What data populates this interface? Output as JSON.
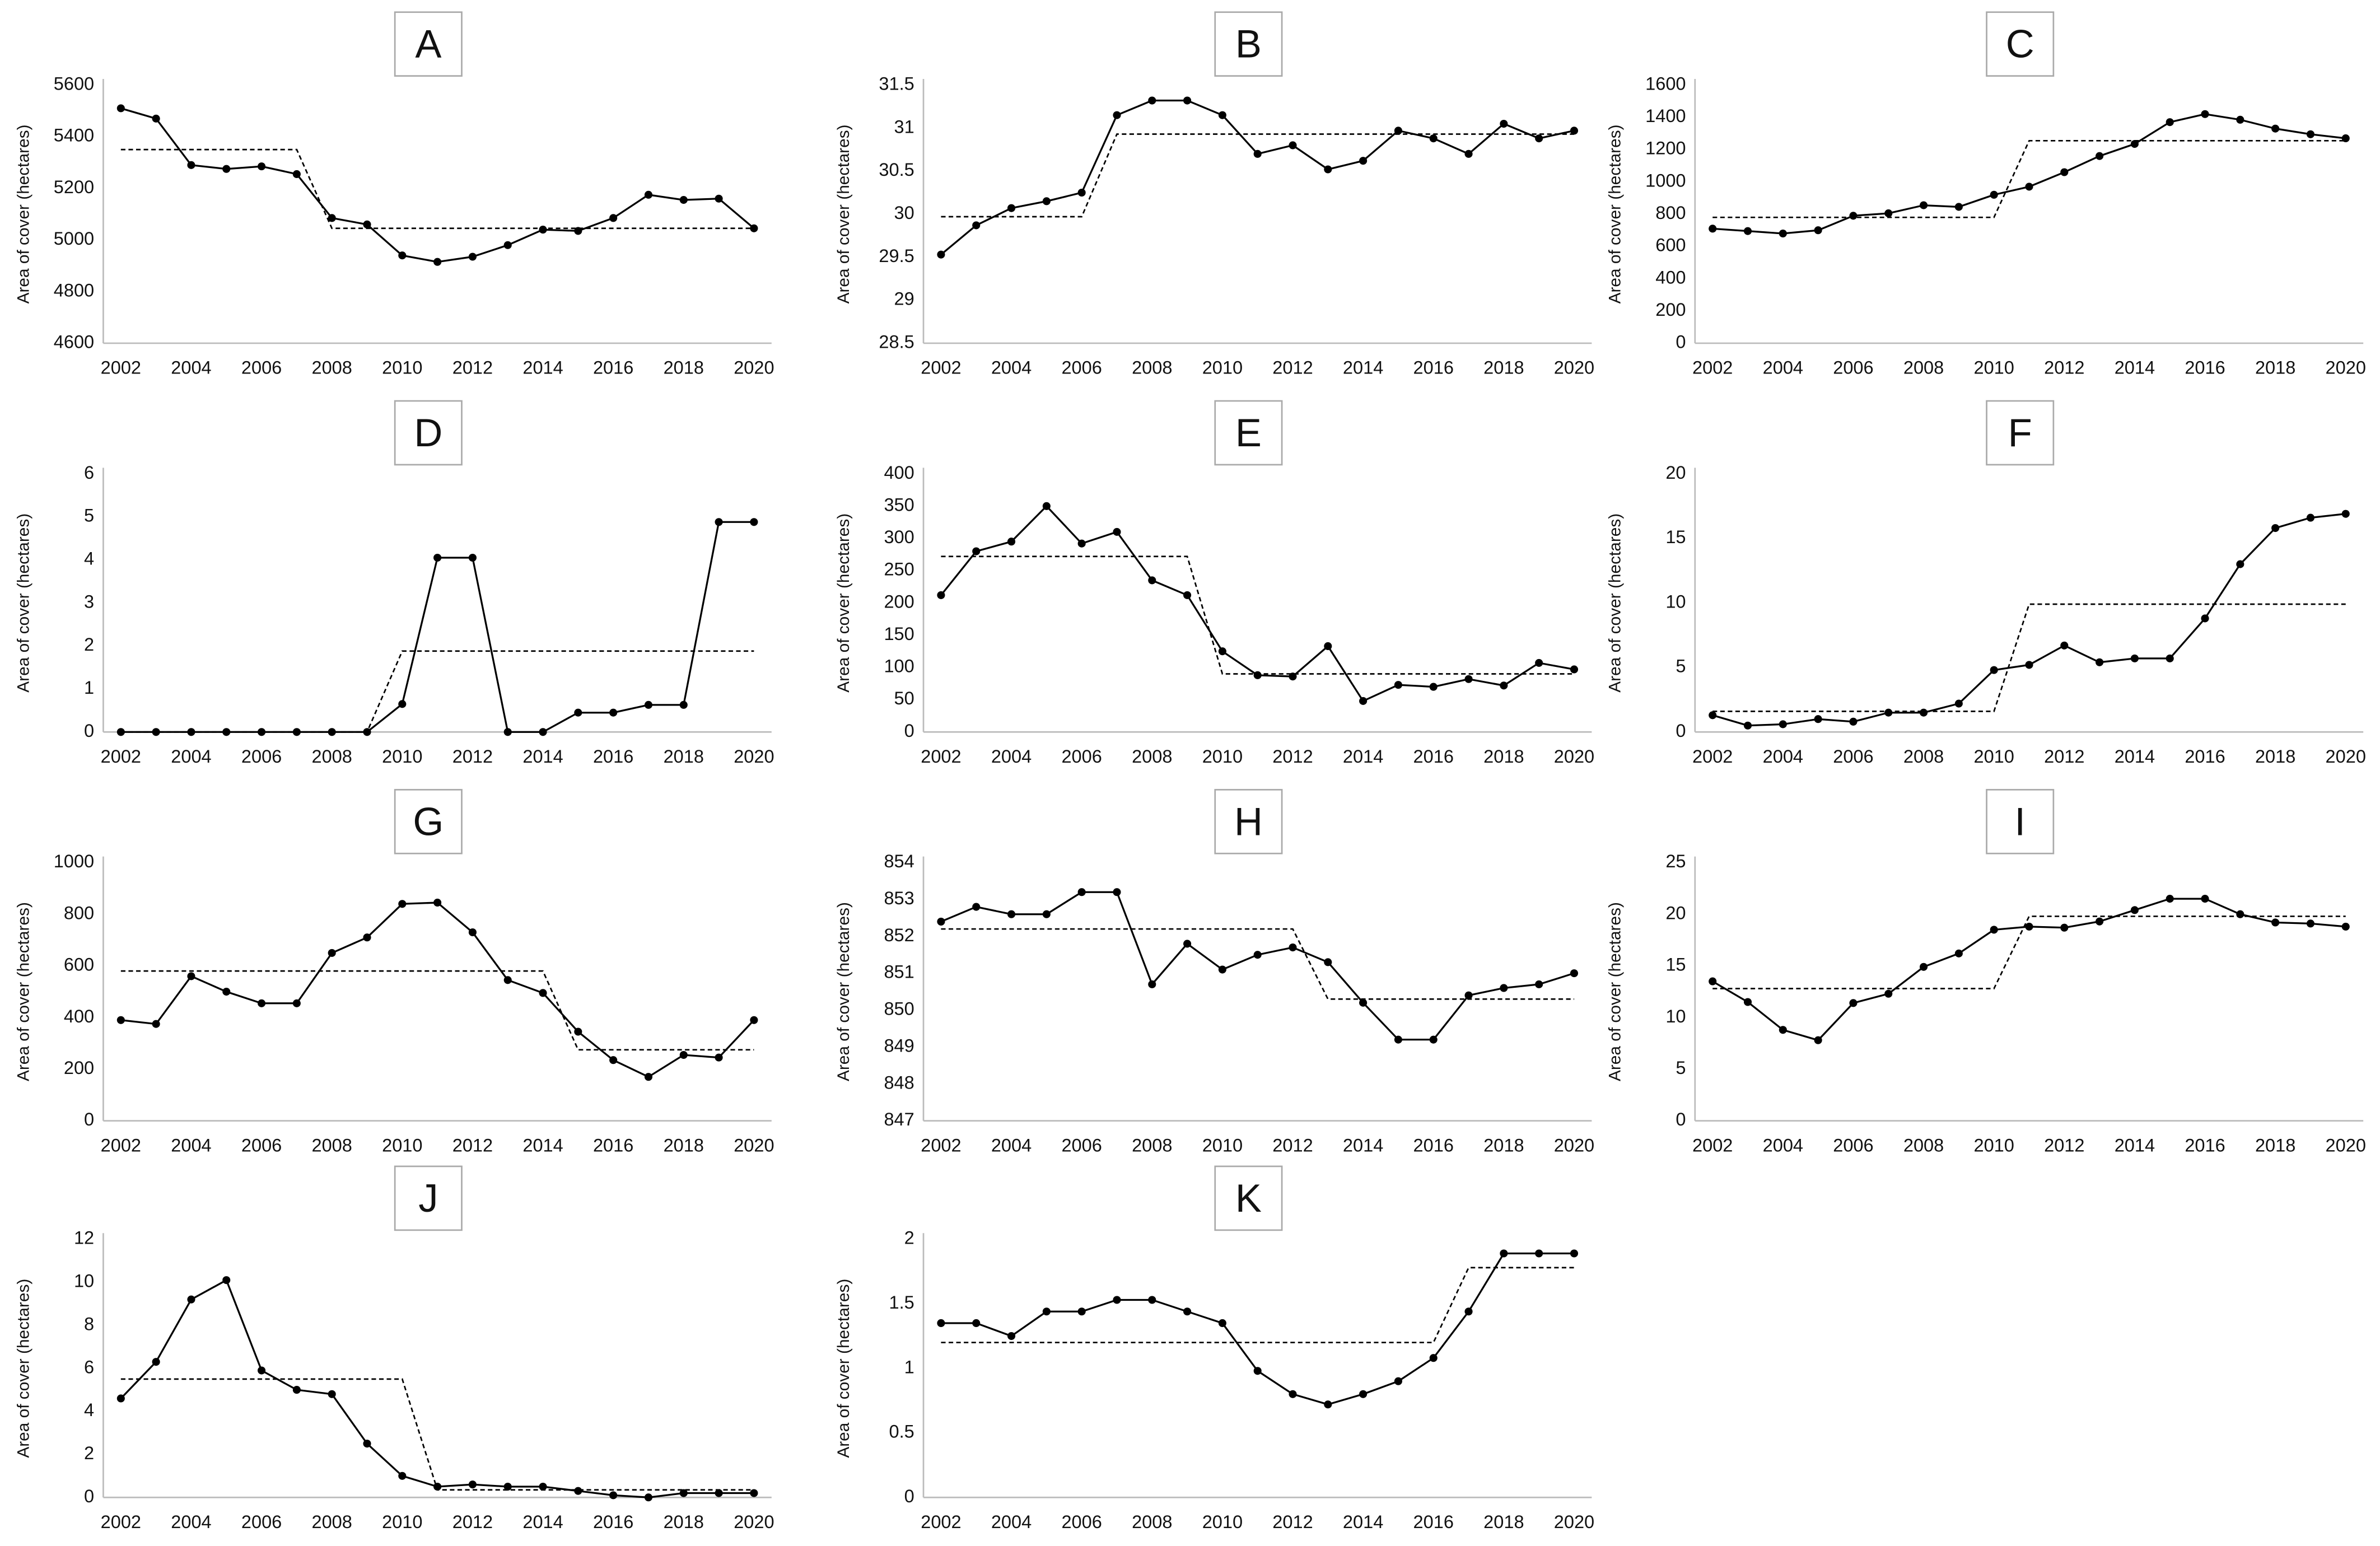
{
  "chart_data": [
    {
      "type": "line",
      "title": "A",
      "ylabel": "Area of cover (hectares)",
      "x": [
        2002,
        2003,
        2004,
        2005,
        2006,
        2007,
        2008,
        2009,
        2010,
        2011,
        2012,
        2013,
        2014,
        2015,
        2016,
        2017,
        2018,
        2019,
        2020
      ],
      "xlim": [
        2001.5,
        2020.5
      ],
      "xticks": [
        2002,
        2004,
        2006,
        2008,
        2010,
        2012,
        2014,
        2016,
        2018,
        2020
      ],
      "ylim": [
        4600,
        5600
      ],
      "yticks": [
        4600,
        4800,
        5000,
        5200,
        5400,
        5600
      ],
      "series": [
        {
          "color": "#000000",
          "style": "solid",
          "markers": true,
          "values": [
            5510,
            5470,
            5290,
            5275,
            5285,
            5255,
            5085,
            5060,
            4940,
            4915,
            4935,
            4980,
            5040,
            5035,
            5085,
            5175,
            5155,
            5160,
            5045
          ]
        },
        {
          "color": "#000000",
          "style": "dashed",
          "markers": false,
          "values": [
            5350,
            5350,
            5350,
            5350,
            5350,
            5350,
            5045,
            5045,
            5045,
            5045,
            5045,
            5045,
            5045,
            5045,
            5045,
            5045,
            5045,
            5045,
            5045
          ]
        }
      ]
    },
    {
      "type": "line",
      "title": "B",
      "ylabel": "Area of cover (hectares)",
      "x": [
        2002,
        2003,
        2004,
        2005,
        2006,
        2007,
        2008,
        2009,
        2010,
        2011,
        2012,
        2013,
        2014,
        2015,
        2016,
        2017,
        2018,
        2019,
        2020
      ],
      "xlim": [
        2001.5,
        2020.5
      ],
      "xticks": [
        2002,
        2004,
        2006,
        2008,
        2010,
        2012,
        2014,
        2016,
        2018,
        2020
      ],
      "ylim": [
        28.5,
        31.5
      ],
      "yticks": [
        28.5,
        29,
        29.5,
        30,
        30.5,
        31,
        31.5
      ],
      "series": [
        {
          "color": "#000000",
          "style": "solid",
          "markers": true,
          "values": [
            29.53,
            29.87,
            30.07,
            30.15,
            30.25,
            31.15,
            31.32,
            31.32,
            31.15,
            30.7,
            30.8,
            30.52,
            30.62,
            30.97,
            30.88,
            30.7,
            31.05,
            30.88,
            30.97
          ]
        },
        {
          "color": "#000000",
          "style": "dashed",
          "markers": false,
          "values": [
            29.97,
            29.97,
            29.97,
            29.97,
            29.97,
            30.93,
            30.93,
            30.93,
            30.93,
            30.93,
            30.93,
            30.93,
            30.93,
            30.93,
            30.93,
            30.93,
            30.93,
            30.93,
            30.93
          ]
        }
      ]
    },
    {
      "type": "line",
      "title": "C",
      "ylabel": "Area of cover (hectares)",
      "x": [
        2002,
        2003,
        2004,
        2005,
        2006,
        2007,
        2008,
        2009,
        2010,
        2011,
        2012,
        2013,
        2014,
        2015,
        2016,
        2017,
        2018,
        2019,
        2020
      ],
      "xlim": [
        2001.5,
        2020.5
      ],
      "xticks": [
        2002,
        2004,
        2006,
        2008,
        2010,
        2012,
        2014,
        2016,
        2018,
        2020
      ],
      "ylim": [
        0,
        1600
      ],
      "yticks": [
        0,
        200,
        400,
        600,
        800,
        1000,
        1200,
        1400,
        1600
      ],
      "series": [
        {
          "color": "#000000",
          "style": "solid",
          "markers": true,
          "values": [
            710,
            695,
            680,
            700,
            790,
            805,
            855,
            845,
            920,
            970,
            1060,
            1160,
            1235,
            1370,
            1420,
            1385,
            1330,
            1295,
            1270
          ]
        },
        {
          "color": "#000000",
          "style": "dashed",
          "markers": false,
          "values": [
            780,
            780,
            780,
            780,
            780,
            780,
            780,
            780,
            780,
            1255,
            1255,
            1255,
            1255,
            1255,
            1255,
            1255,
            1255,
            1255,
            1255
          ]
        }
      ]
    },
    {
      "type": "line",
      "title": "D",
      "ylabel": "Area of cover (hectares)",
      "x": [
        2002,
        2003,
        2004,
        2005,
        2006,
        2007,
        2008,
        2009,
        2010,
        2011,
        2012,
        2013,
        2014,
        2015,
        2016,
        2017,
        2018,
        2019,
        2020
      ],
      "xlim": [
        2001.5,
        2020.5
      ],
      "xticks": [
        2002,
        2004,
        2006,
        2008,
        2010,
        2012,
        2014,
        2016,
        2018,
        2020
      ],
      "ylim": [
        0,
        6
      ],
      "yticks": [
        0,
        1,
        2,
        3,
        4,
        5,
        6
      ],
      "series": [
        {
          "color": "#000000",
          "style": "solid",
          "markers": true,
          "values": [
            0,
            0,
            0,
            0,
            0,
            0,
            0,
            0,
            0.65,
            4.05,
            4.05,
            0,
            0,
            0.45,
            0.45,
            0.63,
            0.63,
            4.88,
            4.88
          ]
        },
        {
          "color": "#000000",
          "style": "dashed",
          "markers": false,
          "values": [
            0,
            0,
            0,
            0,
            0,
            0,
            0,
            0,
            1.88,
            1.88,
            1.88,
            1.88,
            1.88,
            1.88,
            1.88,
            1.88,
            1.88,
            1.88,
            1.88
          ]
        }
      ]
    },
    {
      "type": "line",
      "title": "E",
      "ylabel": "Area of cover (hectares)",
      "x": [
        2002,
        2003,
        2004,
        2005,
        2006,
        2007,
        2008,
        2009,
        2010,
        2011,
        2012,
        2013,
        2014,
        2015,
        2016,
        2017,
        2018,
        2019,
        2020
      ],
      "xlim": [
        2001.5,
        2020.5
      ],
      "xticks": [
        2002,
        2004,
        2006,
        2008,
        2010,
        2012,
        2014,
        2016,
        2018,
        2020
      ],
      "ylim": [
        0,
        400
      ],
      "yticks": [
        0,
        50,
        100,
        150,
        200,
        250,
        300,
        350,
        400
      ],
      "series": [
        {
          "color": "#000000",
          "style": "solid",
          "markers": true,
          "values": [
            212,
            280,
            295,
            350,
            292,
            310,
            235,
            212,
            125,
            88,
            86,
            133,
            48,
            73,
            70,
            82,
            72,
            107,
            97
          ]
        },
        {
          "color": "#000000",
          "style": "dashed",
          "markers": false,
          "values": [
            272,
            272,
            272,
            272,
            272,
            272,
            272,
            272,
            90,
            90,
            90,
            90,
            90,
            90,
            90,
            90,
            90,
            90,
            90
          ]
        }
      ]
    },
    {
      "type": "line",
      "title": "F",
      "ylabel": "Area of cover (hectares)",
      "x": [
        2002,
        2003,
        2004,
        2005,
        2006,
        2007,
        2008,
        2009,
        2010,
        2011,
        2012,
        2013,
        2014,
        2015,
        2016,
        2017,
        2018,
        2019,
        2020
      ],
      "xlim": [
        2001.5,
        2020.5
      ],
      "xticks": [
        2002,
        2004,
        2006,
        2008,
        2010,
        2012,
        2014,
        2016,
        2018,
        2020
      ],
      "ylim": [
        0,
        20
      ],
      "yticks": [
        0,
        5,
        10,
        15,
        20
      ],
      "series": [
        {
          "color": "#000000",
          "style": "solid",
          "markers": true,
          "values": [
            1.3,
            0.5,
            0.6,
            1.0,
            0.8,
            1.5,
            1.5,
            2.2,
            4.8,
            5.2,
            6.7,
            5.4,
            5.7,
            5.7,
            8.8,
            13,
            15.8,
            16.6,
            16.9
          ]
        },
        {
          "color": "#000000",
          "style": "dashed",
          "markers": false,
          "values": [
            1.6,
            1.6,
            1.6,
            1.6,
            1.6,
            1.6,
            1.6,
            1.6,
            1.6,
            9.9,
            9.9,
            9.9,
            9.9,
            9.9,
            9.9,
            9.9,
            9.9,
            9.9,
            9.9
          ]
        }
      ]
    },
    {
      "type": "line",
      "title": "G",
      "ylabel": "Area of cover (hectares)",
      "x": [
        2002,
        2003,
        2004,
        2005,
        2006,
        2007,
        2008,
        2009,
        2010,
        2011,
        2012,
        2013,
        2014,
        2015,
        2016,
        2017,
        2018,
        2019,
        2020
      ],
      "xlim": [
        2001.5,
        2020.5
      ],
      "xticks": [
        2002,
        2004,
        2006,
        2008,
        2010,
        2012,
        2014,
        2016,
        2018,
        2020
      ],
      "ylim": [
        0,
        1000
      ],
      "yticks": [
        0,
        200,
        400,
        600,
        800,
        1000
      ],
      "series": [
        {
          "color": "#000000",
          "style": "solid",
          "markers": true,
          "values": [
            390,
            375,
            560,
            500,
            455,
            455,
            650,
            710,
            840,
            845,
            730,
            545,
            495,
            345,
            235,
            170,
            255,
            245,
            390
          ]
        },
        {
          "color": "#000000",
          "style": "dashed",
          "markers": false,
          "values": [
            580,
            580,
            580,
            580,
            580,
            580,
            580,
            580,
            580,
            580,
            580,
            580,
            580,
            275,
            275,
            275,
            275,
            275,
            275
          ]
        }
      ]
    },
    {
      "type": "line",
      "title": "H",
      "ylabel": "Area of cover (hectares)",
      "x": [
        2002,
        2003,
        2004,
        2005,
        2006,
        2007,
        2008,
        2009,
        2010,
        2011,
        2012,
        2013,
        2014,
        2015,
        2016,
        2017,
        2018,
        2019,
        2020
      ],
      "xlim": [
        2001.5,
        2020.5
      ],
      "xticks": [
        2002,
        2004,
        2006,
        2008,
        2010,
        2012,
        2014,
        2016,
        2018,
        2020
      ],
      "ylim": [
        847,
        854
      ],
      "yticks": [
        847,
        848,
        849,
        850,
        851,
        852,
        853,
        854
      ],
      "series": [
        {
          "color": "#000000",
          "style": "solid",
          "markers": true,
          "values": [
            852.4,
            852.8,
            852.6,
            852.6,
            853.2,
            853.2,
            850.7,
            851.8,
            851.1,
            851.5,
            851.7,
            851.3,
            850.2,
            849.2,
            849.2,
            850.4,
            850.6,
            850.7,
            851.0
          ]
        },
        {
          "color": "#000000",
          "style": "dashed",
          "markers": false,
          "values": [
            852.2,
            852.2,
            852.2,
            852.2,
            852.2,
            852.2,
            852.2,
            852.2,
            852.2,
            852.2,
            852.2,
            850.3,
            850.3,
            850.3,
            850.3,
            850.3,
            850.3,
            850.3,
            850.3
          ]
        }
      ]
    },
    {
      "type": "line",
      "title": "I",
      "ylabel": "Area of cover (hectares)",
      "x": [
        2002,
        2003,
        2004,
        2005,
        2006,
        2007,
        2008,
        2009,
        2010,
        2011,
        2012,
        2013,
        2014,
        2015,
        2016,
        2017,
        2018,
        2019,
        2020
      ],
      "xlim": [
        2001.5,
        2020.5
      ],
      "xticks": [
        2002,
        2004,
        2006,
        2008,
        2010,
        2012,
        2014,
        2016,
        2018,
        2020
      ],
      "ylim": [
        0,
        25
      ],
      "yticks": [
        0,
        5,
        10,
        15,
        20,
        25
      ],
      "series": [
        {
          "color": "#000000",
          "style": "solid",
          "markers": true,
          "values": [
            13.5,
            11.5,
            8.8,
            7.8,
            11.4,
            12.3,
            14.9,
            16.2,
            18.5,
            18.8,
            18.7,
            19.3,
            20.4,
            21.5,
            21.5,
            20,
            19.2,
            19.1,
            18.8
          ]
        },
        {
          "color": "#000000",
          "style": "dashed",
          "markers": false,
          "values": [
            12.8,
            12.8,
            12.8,
            12.8,
            12.8,
            12.8,
            12.8,
            12.8,
            12.8,
            19.8,
            19.8,
            19.8,
            19.8,
            19.8,
            19.8,
            19.8,
            19.8,
            19.8,
            19.8
          ]
        }
      ]
    },
    {
      "type": "line",
      "title": "J",
      "ylabel": "Area of cover (hectares)",
      "x": [
        2002,
        2003,
        2004,
        2005,
        2006,
        2007,
        2008,
        2009,
        2010,
        2011,
        2012,
        2013,
        2014,
        2015,
        2016,
        2017,
        2018,
        2019,
        2020
      ],
      "xlim": [
        2001.5,
        2020.5
      ],
      "xticks": [
        2002,
        2004,
        2006,
        2008,
        2010,
        2012,
        2014,
        2016,
        2018,
        2020
      ],
      "ylim": [
        0,
        12
      ],
      "yticks": [
        0,
        2,
        4,
        6,
        8,
        10,
        12
      ],
      "series": [
        {
          "color": "#000000",
          "style": "solid",
          "markers": true,
          "values": [
            4.6,
            6.3,
            9.2,
            10.1,
            5.9,
            5.0,
            4.8,
            2.5,
            1.0,
            0.5,
            0.6,
            0.5,
            0.5,
            0.3,
            0.1,
            0.0,
            0.2,
            0.2,
            0.2
          ]
        },
        {
          "color": "#000000",
          "style": "dashed",
          "markers": false,
          "values": [
            5.5,
            5.5,
            5.5,
            5.5,
            5.5,
            5.5,
            5.5,
            5.5,
            5.5,
            0.35,
            0.35,
            0.35,
            0.35,
            0.35,
            0.35,
            0.35,
            0.35,
            0.35,
            0.35
          ]
        }
      ]
    },
    {
      "type": "line",
      "title": "K",
      "ylabel": "Area of cover (hectares)",
      "x": [
        2002,
        2003,
        2004,
        2005,
        2006,
        2007,
        2008,
        2009,
        2010,
        2011,
        2012,
        2013,
        2014,
        2015,
        2016,
        2017,
        2018,
        2019,
        2020
      ],
      "xlim": [
        2001.5,
        2020.5
      ],
      "xticks": [
        2002,
        2004,
        2006,
        2008,
        2010,
        2012,
        2014,
        2016,
        2018,
        2020
      ],
      "ylim": [
        0,
        2
      ],
      "yticks": [
        0,
        0.5,
        1,
        1.5,
        2
      ],
      "series": [
        {
          "color": "#000000",
          "style": "solid",
          "markers": true,
          "values": [
            1.35,
            1.35,
            1.25,
            1.44,
            1.44,
            1.53,
            1.53,
            1.44,
            1.35,
            0.98,
            0.8,
            0.72,
            0.8,
            0.9,
            1.08,
            1.44,
            1.89,
            1.89,
            1.89
          ]
        },
        {
          "color": "#000000",
          "style": "dashed",
          "markers": false,
          "values": [
            1.2,
            1.2,
            1.2,
            1.2,
            1.2,
            1.2,
            1.2,
            1.2,
            1.2,
            1.2,
            1.2,
            1.2,
            1.2,
            1.2,
            1.2,
            1.78,
            1.78,
            1.78,
            1.78
          ]
        }
      ]
    }
  ]
}
